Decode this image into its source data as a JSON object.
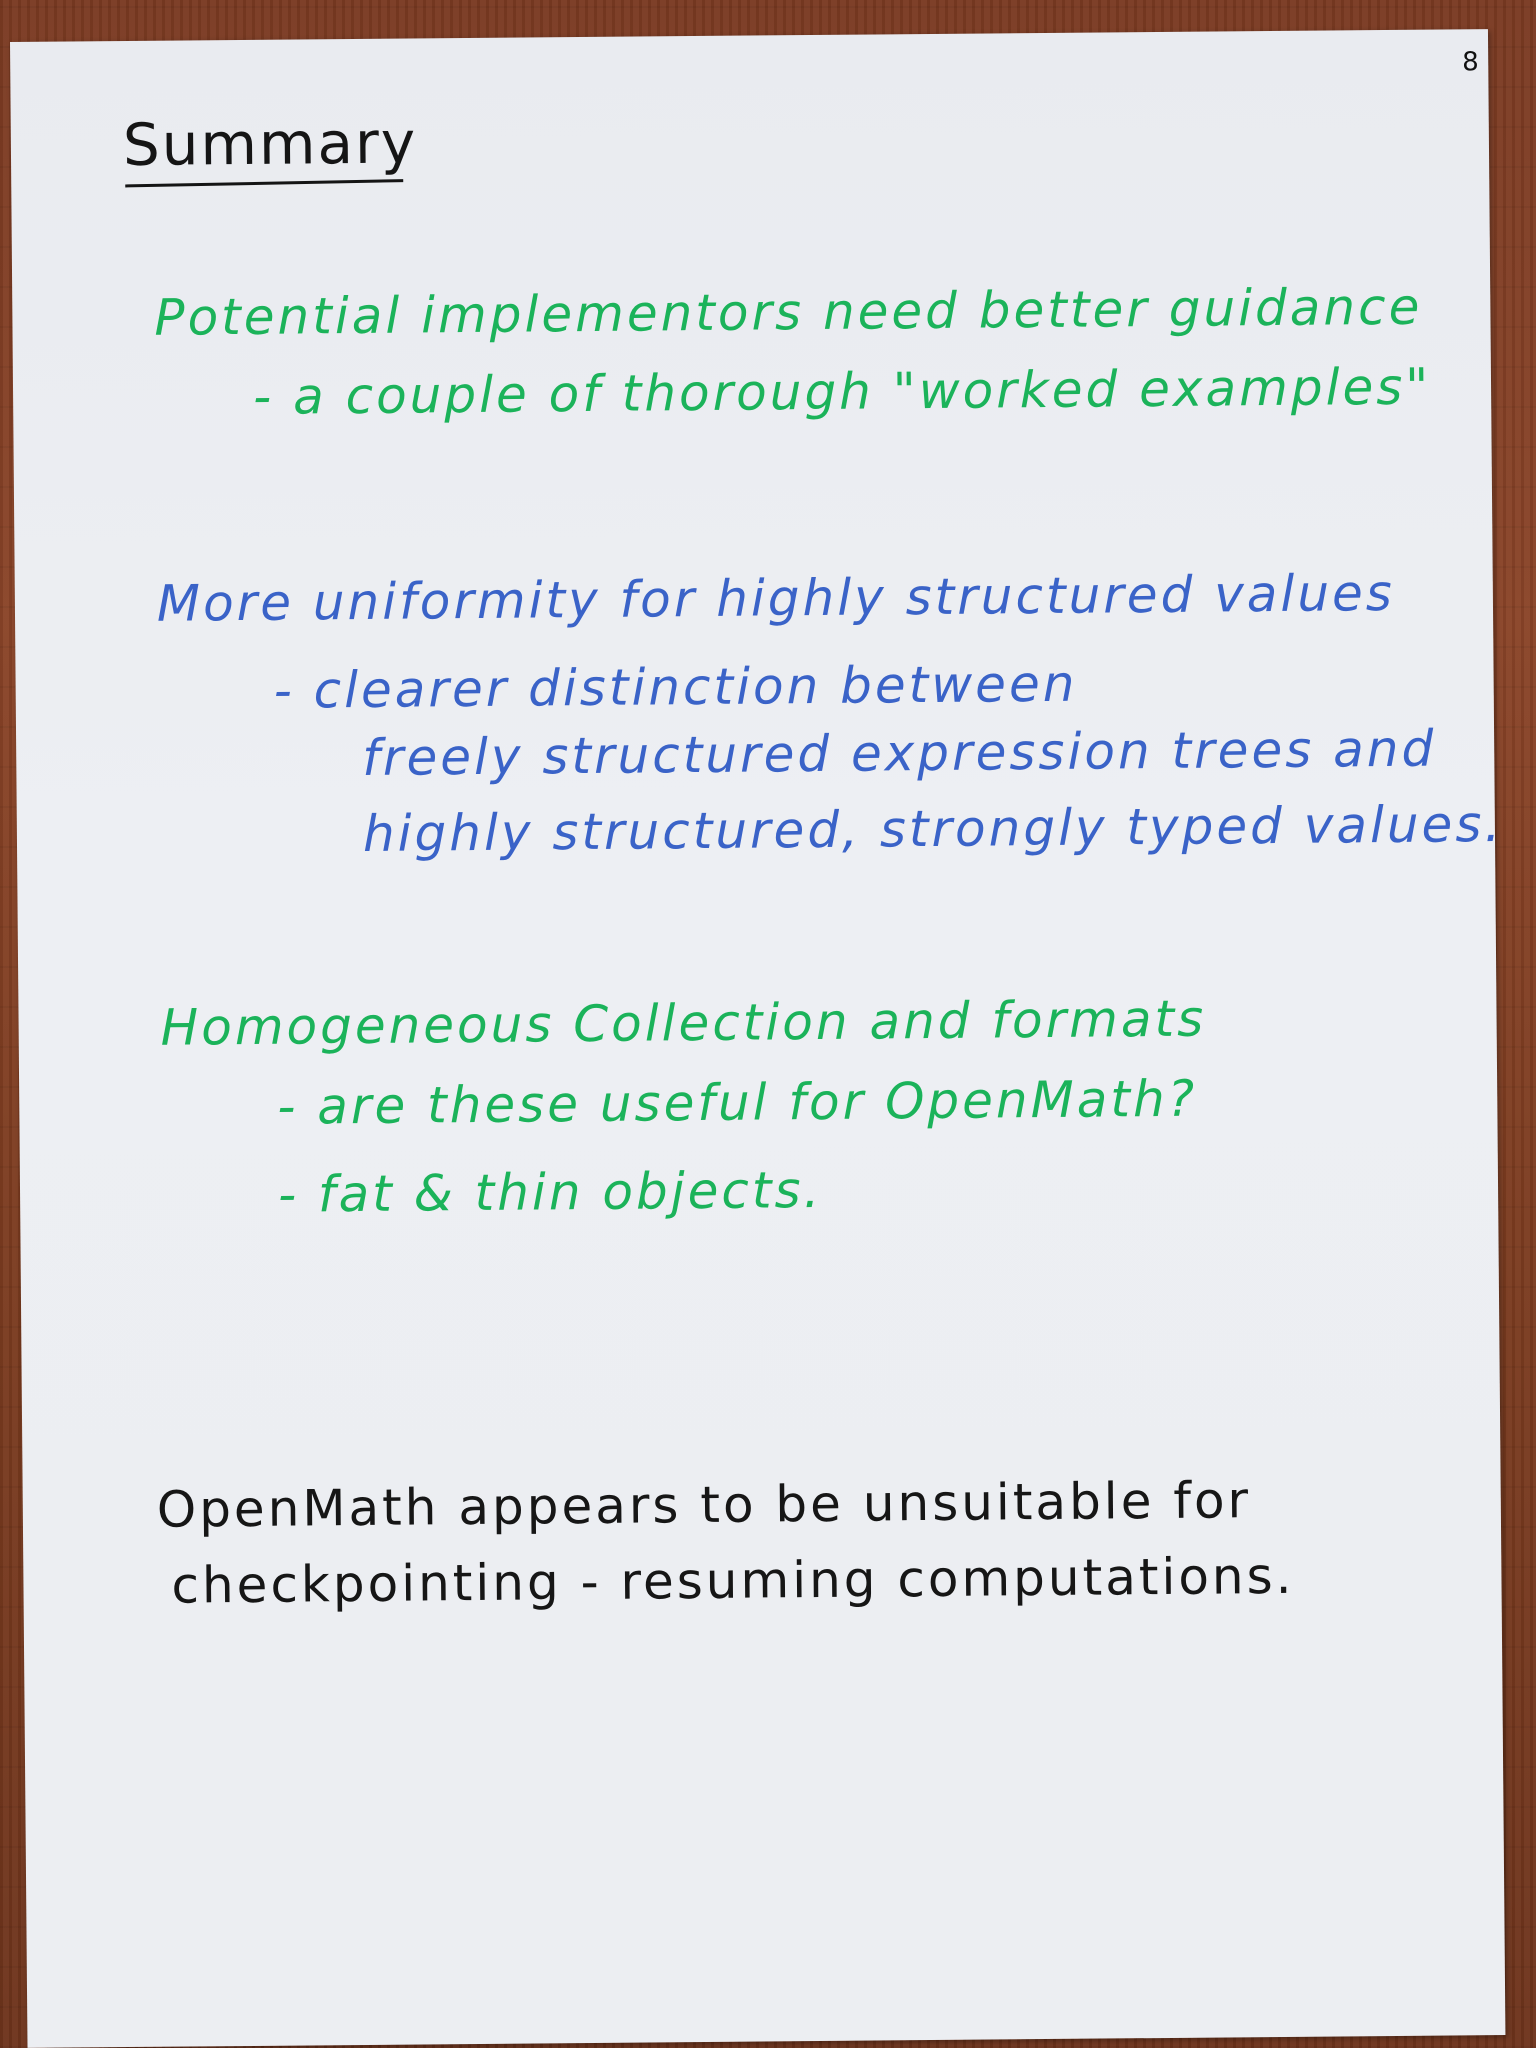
{
  "page": {
    "page_number": "8",
    "title": "Summary"
  },
  "sections": [
    {
      "color": "#1bb35a",
      "heading": "Potential implementors need better guidance",
      "points": [
        "- a couple of thorough \"worked examples\""
      ]
    },
    {
      "color": "#3a63c8",
      "heading": "More uniformity for highly structured values",
      "points": [
        "- clearer distinction between",
        "freely structured expression trees and",
        "highly structured, strongly typed values."
      ]
    },
    {
      "color": "#1bb35a",
      "heading": "Homogeneous Collection and formats",
      "points": [
        "- are these useful for OpenMath?",
        "- fat & thin objects."
      ]
    }
  ],
  "conclusion": {
    "color": "#161616",
    "lines": [
      "OpenMath appears to be unsuitable for",
      "checkpointing - resuming computations."
    ]
  }
}
